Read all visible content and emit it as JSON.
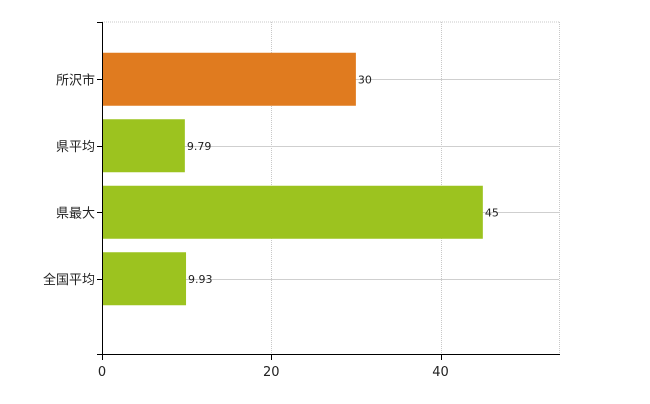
{
  "chart_data": {
    "type": "bar",
    "orientation": "horizontal",
    "categories": [
      "所沢市",
      "県平均",
      "県最大",
      "全国平均"
    ],
    "values": [
      30,
      9.79,
      45,
      9.93
    ],
    "data_labels": [
      "30",
      "9.79",
      "45",
      "9.93"
    ],
    "bar_colors": [
      "#e07b1f",
      "#9cc31f",
      "#9cc31f",
      "#9cc31f"
    ],
    "xlim": [
      0,
      54
    ],
    "x_ticks": [
      0,
      20,
      40
    ],
    "x_tick_labels": [
      "0",
      "20",
      "40"
    ],
    "grid": true,
    "title": "",
    "xlabel": "",
    "ylabel": ""
  }
}
